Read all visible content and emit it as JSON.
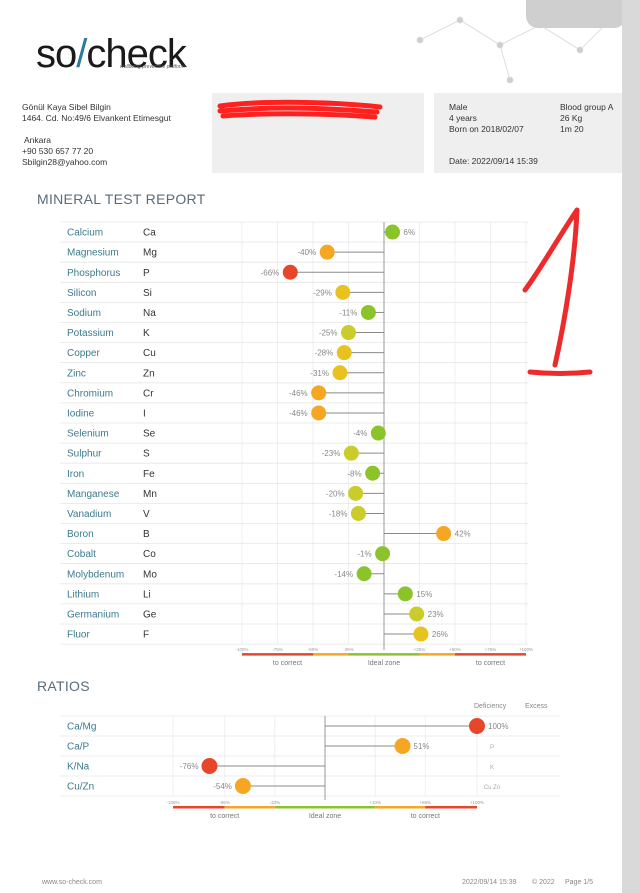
{
  "brand": {
    "name_prefix": "SO",
    "name_suffix": "check",
    "tagline": "wellbeing preventive platform"
  },
  "patient": {
    "name": "Gönül Kaya Sibel Bilgin",
    "address": "1464. Cd. No:49/6 Elvankent Etimesgut",
    "city": "Ankara",
    "phone": "+90 530 657 77 20",
    "email": "Sbilgin28@yahoo.com",
    "sex": "Male",
    "age": "4 years",
    "born": "Born on 2018/02/07",
    "blood": "Blood group A",
    "weight": "26 Kg",
    "height": "1m 20",
    "date": "Date: 2022/09/14 15:39"
  },
  "minerals": {
    "title": "MINERAL TEST REPORT",
    "rows": [
      {
        "name": "Calcium",
        "sym": "Ca",
        "val": 6,
        "label": "6%"
      },
      {
        "name": "Magnesium",
        "sym": "Mg",
        "val": -40,
        "label": "-40%"
      },
      {
        "name": "Phosphorus",
        "sym": "P",
        "val": -66,
        "label": "-66%"
      },
      {
        "name": "Silicon",
        "sym": "Si",
        "val": -29,
        "label": "-29%"
      },
      {
        "name": "Sodium",
        "sym": "Na",
        "val": -11,
        "label": "-11%"
      },
      {
        "name": "Potassium",
        "sym": "K",
        "val": -25,
        "label": "-25%"
      },
      {
        "name": "Copper",
        "sym": "Cu",
        "val": -28,
        "label": "-28%"
      },
      {
        "name": "Zinc",
        "sym": "Zn",
        "val": -31,
        "label": "-31%"
      },
      {
        "name": "Chromium",
        "sym": "Cr",
        "val": -46,
        "label": "-46%"
      },
      {
        "name": "Iodine",
        "sym": "I",
        "val": -46,
        "label": "-46%"
      },
      {
        "name": "Selenium",
        "sym": "Se",
        "val": -4,
        "label": "-4%"
      },
      {
        "name": "Sulphur",
        "sym": "S",
        "val": -23,
        "label": "-23%"
      },
      {
        "name": "Iron",
        "sym": "Fe",
        "val": -8,
        "label": "-8%"
      },
      {
        "name": "Manganese",
        "sym": "Mn",
        "val": -20,
        "label": "-20%"
      },
      {
        "name": "Vanadium",
        "sym": "V",
        "val": -18,
        "label": "-18%"
      },
      {
        "name": "Boron",
        "sym": "B",
        "val": 42,
        "label": "42%"
      },
      {
        "name": "Cobalt",
        "sym": "Co",
        "val": -1,
        "label": "-1%"
      },
      {
        "name": "Molybdenum",
        "sym": "Mo",
        "val": -14,
        "label": "-14%"
      },
      {
        "name": "Lithium",
        "sym": "Li",
        "val": 15,
        "label": "15%"
      },
      {
        "name": "Germanium",
        "sym": "Ge",
        "val": 23,
        "label": "23%"
      },
      {
        "name": "Fluor",
        "sym": "F",
        "val": 26,
        "label": "26%"
      }
    ],
    "scale_ticks": [
      "-100%",
      "-75%",
      "-50%",
      "-25%",
      "+25%",
      "+50%",
      "+75%",
      "+100%"
    ],
    "zone_left": "to correct",
    "zone_mid": "Ideal zone",
    "zone_right": "to correct"
  },
  "ratios": {
    "title": "RATIOS",
    "col_deficiency": "Deficiency",
    "col_excess": "Excess",
    "rows": [
      {
        "name": "Ca/Mg",
        "val": 100,
        "label": "100%",
        "right": ""
      },
      {
        "name": "Ca/P",
        "val": 51,
        "label": "51%",
        "right": "P"
      },
      {
        "name": "K/Na",
        "val": -76,
        "label": "-76%",
        "right": "K"
      },
      {
        "name": "Cu/Zn",
        "val": -54,
        "label": "-54%",
        "right": "Cu Zn"
      }
    ],
    "scale_ticks": [
      "-100%",
      "-66%",
      "-33%",
      "+33%",
      "+66%",
      "+100%"
    ],
    "zone_left": "to correct",
    "zone_mid": "Ideal zone",
    "zone_right": "to correct"
  },
  "footer": {
    "site": "www.so-check.com",
    "date": "2022/09/14 15:39",
    "copyright": "© 2022",
    "page": "Page 1/5"
  },
  "colors": {
    "green": "#8bc42a",
    "yellowgreen": "#c9cc2a",
    "yellow": "#e8c21f",
    "orange": "#f5a623",
    "red": "#e8462a",
    "label": "#3b7b8e"
  }
}
